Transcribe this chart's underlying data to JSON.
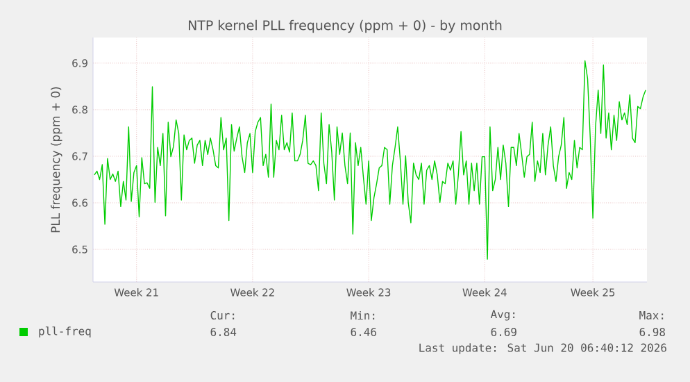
{
  "chart_data": {
    "type": "line",
    "title": "NTP kernel PLL frequency (ppm + 0) - by month",
    "ylabel": "PLL frequency (ppm + 0)",
    "ylim": [
      6.43,
      6.955
    ],
    "categories": [
      null,
      null,
      null,
      null,
      null,
      null,
      null,
      null,
      null,
      null,
      null,
      null,
      null,
      null,
      null,
      null,
      "Week 21",
      null,
      null,
      null,
      null,
      null,
      null,
      null,
      null,
      null,
      null,
      null,
      null,
      null,
      null,
      null,
      null,
      null,
      null,
      null,
      null,
      null,
      null,
      null,
      null,
      null,
      null,
      null,
      null,
      null,
      null,
      null,
      null,
      null,
      null,
      null,
      null,
      null,
      null,
      null,
      null,
      null,
      null,
      null,
      "Week 22",
      null,
      null,
      null,
      null,
      null,
      null,
      null,
      null,
      null,
      null,
      null,
      null,
      null,
      null,
      null,
      null,
      null,
      null,
      null,
      null,
      null,
      null,
      null,
      null,
      null,
      null,
      null,
      null,
      null,
      null,
      null,
      null,
      null,
      null,
      null,
      null,
      null,
      null,
      null,
      null,
      null,
      null,
      null,
      "Week 23",
      null,
      null,
      null,
      null,
      null,
      null,
      null,
      null,
      null,
      null,
      null,
      null,
      null,
      null,
      null,
      null,
      null,
      null,
      null,
      null,
      null,
      null,
      null,
      null,
      null,
      null,
      null,
      null,
      null,
      null,
      null,
      null,
      null,
      null,
      null,
      null,
      null,
      null,
      null,
      null,
      null,
      null,
      null,
      "Week 24",
      null,
      null,
      null,
      null,
      null,
      null,
      null,
      null,
      null,
      null,
      null,
      null,
      null,
      null,
      null,
      null,
      null,
      null,
      null,
      null,
      null,
      null,
      null,
      null,
      null,
      null,
      null,
      null,
      null,
      null,
      null,
      null,
      null,
      null,
      null,
      null,
      null,
      null,
      null,
      null,
      "Week 25",
      null,
      null,
      null,
      null,
      null,
      null,
      null,
      null,
      null,
      null,
      null,
      null,
      null,
      null,
      null,
      null,
      null,
      null,
      null,
      null
    ],
    "yticks": [
      6.5,
      6.6,
      6.7,
      6.8,
      6.9
    ],
    "grid": true,
    "legend": "bottom",
    "line_style": "solid",
    "marker": "none",
    "annotations": [
      "Cur:",
      "Min:",
      "Avg:",
      "Max:",
      "6.84",
      "6.46",
      "6.69",
      "6.98",
      "Last update: Sat Jun 20 06:40:12 2026"
    ],
    "series": [
      {
        "name": "pll-freq",
        "color": "#00cc00",
        "values": [
          6.66,
          6.668,
          6.65,
          6.682,
          6.554,
          6.695,
          6.65,
          6.662,
          6.646,
          6.668,
          6.592,
          6.646,
          6.606,
          6.763,
          6.603,
          6.665,
          6.68,
          6.57,
          6.697,
          6.641,
          6.643,
          6.631,
          6.849,
          6.601,
          6.719,
          6.68,
          6.749,
          6.572,
          6.773,
          6.699,
          6.721,
          6.778,
          6.749,
          6.606,
          6.746,
          6.714,
          6.734,
          6.739,
          6.685,
          6.724,
          6.734,
          6.68,
          6.734,
          6.704,
          6.739,
          6.714,
          6.68,
          6.675,
          6.783,
          6.714,
          6.739,
          6.562,
          6.768,
          6.711,
          6.739,
          6.763,
          6.699,
          6.665,
          6.729,
          6.749,
          6.665,
          6.753,
          6.773,
          6.783,
          6.68,
          6.704,
          6.655,
          6.812,
          6.655,
          6.734,
          6.714,
          6.788,
          6.714,
          6.729,
          6.709,
          6.793,
          6.69,
          6.69,
          6.704,
          6.734,
          6.788,
          6.685,
          6.682,
          6.69,
          6.68,
          6.626,
          6.793,
          6.685,
          6.641,
          6.768,
          6.709,
          6.606,
          6.763,
          6.704,
          6.75,
          6.68,
          6.641,
          6.75,
          6.533,
          6.729,
          6.68,
          6.719,
          6.655,
          6.597,
          6.69,
          6.562,
          6.611,
          6.641,
          6.675,
          6.68,
          6.719,
          6.714,
          6.597,
          6.68,
          6.719,
          6.763,
          6.69,
          6.597,
          6.701,
          6.601,
          6.557,
          6.685,
          6.66,
          6.65,
          6.685,
          6.597,
          6.67,
          6.68,
          6.65,
          6.69,
          6.66,
          6.601,
          6.646,
          6.641,
          6.685,
          6.67,
          6.69,
          6.597,
          6.66,
          6.753,
          6.66,
          6.69,
          6.597,
          6.685,
          6.626,
          6.685,
          6.597,
          6.699,
          6.699,
          6.479,
          6.763,
          6.626,
          6.65,
          6.719,
          6.65,
          6.724,
          6.685,
          6.592,
          6.719,
          6.719,
          6.68,
          6.749,
          6.704,
          6.655,
          6.699,
          6.704,
          6.773,
          6.646,
          6.69,
          6.665,
          6.749,
          6.66,
          6.724,
          6.763,
          6.68,
          6.646,
          6.699,
          6.724,
          6.783,
          6.631,
          6.665,
          6.65,
          6.734,
          6.675,
          6.719,
          6.714,
          6.905,
          6.866,
          6.739,
          6.567,
          6.763,
          6.842,
          6.749,
          6.896,
          6.739,
          6.793,
          6.714,
          6.788,
          6.734,
          6.817,
          6.778,
          6.793,
          6.768,
          6.832,
          6.739,
          6.729,
          6.807,
          6.802,
          6.827,
          6.842
        ]
      }
    ]
  }
}
